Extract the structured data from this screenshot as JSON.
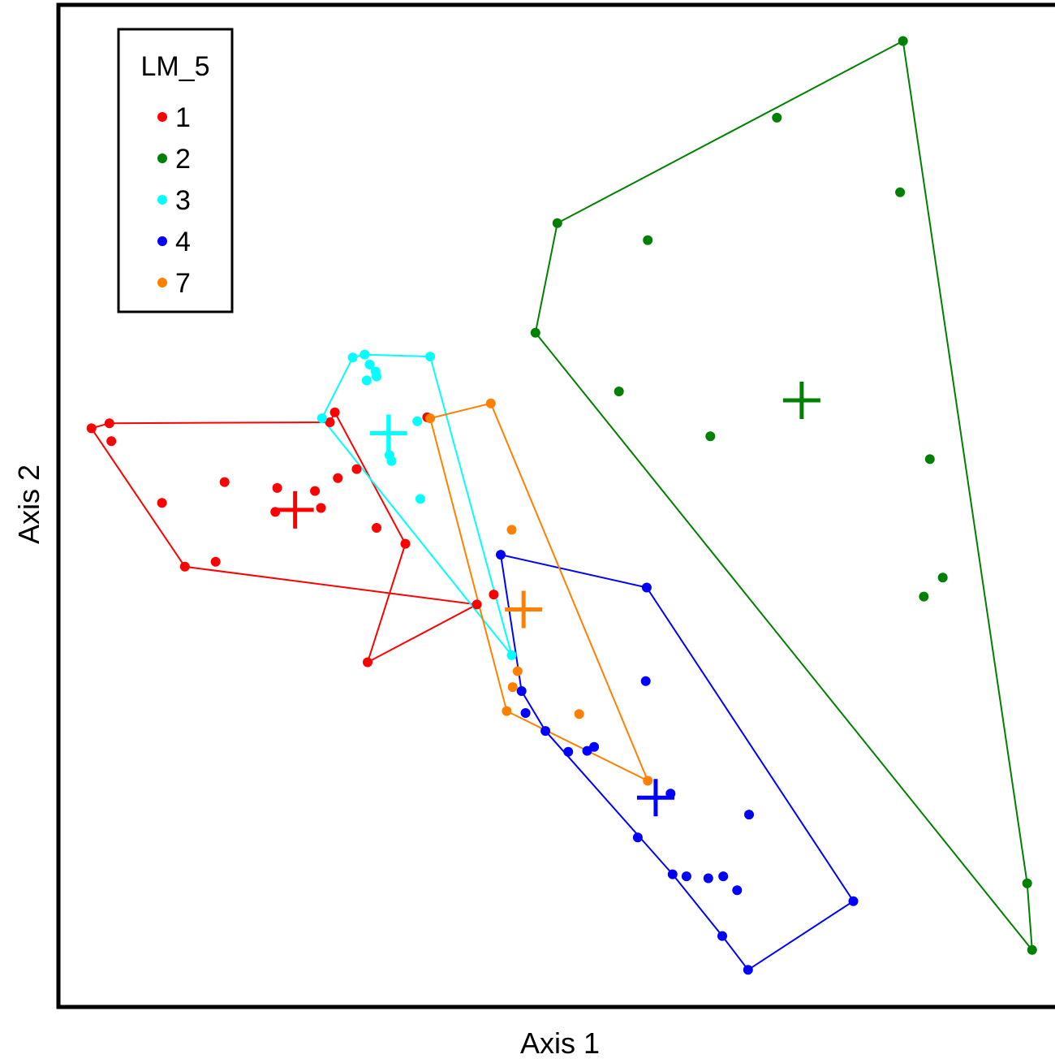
{
  "chart_data": {
    "type": "scatter",
    "title": "",
    "xlabel": "Axis 1",
    "ylabel": "Axis 2",
    "xlim": [
      0,
      100
    ],
    "ylim": [
      0,
      100
    ],
    "grid": false,
    "legend": {
      "title": "LM_5",
      "placement": "top-left",
      "entries": [
        "1",
        "2",
        "3",
        "4",
        "7"
      ]
    },
    "series": [
      {
        "name": "1",
        "color": "#ff0000",
        "points": [
          [
            3.0,
            57.8
          ],
          [
            4.8,
            58.3
          ],
          [
            5.0,
            56.5
          ],
          [
            10.1,
            50.3
          ],
          [
            12.4,
            43.9
          ],
          [
            15.5,
            44.4
          ],
          [
            16.4,
            52.4
          ],
          [
            21.7,
            51.8
          ],
          [
            21.5,
            49.4
          ],
          [
            25.5,
            51.5
          ],
          [
            26.1,
            49.8
          ],
          [
            27.8,
            52.8
          ],
          [
            29.7,
            53.7
          ],
          [
            27.0,
            58.4
          ],
          [
            27.5,
            59.4
          ],
          [
            31.7,
            47.8
          ],
          [
            34.6,
            46.2
          ],
          [
            36.8,
            58.9
          ],
          [
            41.8,
            40.1
          ],
          [
            43.5,
            41.1
          ],
          [
            30.8,
            34.3
          ]
        ],
        "hull_order": [
          0,
          1,
          13,
          14,
          16,
          20,
          18,
          4,
          0
        ],
        "centroid": [
          23.5,
          49.6
        ]
      },
      {
        "name": "2",
        "color": "#008000",
        "points": [
          [
            84.7,
            96.7
          ],
          [
            72.0,
            89.0
          ],
          [
            84.4,
            81.5
          ],
          [
            49.9,
            78.4
          ],
          [
            59.0,
            76.7
          ],
          [
            47.7,
            67.4
          ],
          [
            56.1,
            61.5
          ],
          [
            65.3,
            57.0
          ],
          [
            87.4,
            54.7
          ],
          [
            88.7,
            42.8
          ],
          [
            86.8,
            40.9
          ],
          [
            97.2,
            12.1
          ],
          [
            97.7,
            5.4
          ]
        ],
        "hull_order": [
          0,
          11,
          12,
          5,
          3,
          0
        ],
        "centroid": [
          74.5,
          60.6
        ]
      },
      {
        "name": "3",
        "color": "#00ffff",
        "points": [
          [
            37.1,
            65.0
          ],
          [
            29.3,
            64.9
          ],
          [
            30.5,
            65.2
          ],
          [
            31.0,
            64.2
          ],
          [
            31.6,
            63.5
          ],
          [
            31.7,
            63.0
          ],
          [
            30.7,
            62.6
          ],
          [
            26.2,
            58.8
          ],
          [
            35.8,
            58.5
          ],
          [
            33.0,
            55.1
          ],
          [
            33.2,
            54.5
          ],
          [
            36.1,
            50.7
          ],
          [
            45.3,
            35.0
          ]
        ],
        "hull_order": [
          0,
          12,
          7,
          1,
          2,
          0
        ],
        "centroid": [
          32.9,
          57.3
        ]
      },
      {
        "name": "4",
        "color": "#0000ff",
        "points": [
          [
            44.2,
            45.1
          ],
          [
            58.9,
            41.8
          ],
          [
            58.8,
            32.4
          ],
          [
            46.3,
            31.4
          ],
          [
            46.7,
            29.2
          ],
          [
            48.7,
            27.4
          ],
          [
            51.0,
            25.3
          ],
          [
            52.9,
            25.4
          ],
          [
            53.6,
            25.8
          ],
          [
            61.3,
            21.1
          ],
          [
            69.2,
            19.0
          ],
          [
            58.0,
            16.7
          ],
          [
            61.5,
            13.0
          ],
          [
            62.9,
            12.8
          ],
          [
            65.1,
            12.6
          ],
          [
            66.6,
            12.8
          ],
          [
            68.0,
            11.4
          ],
          [
            79.7,
            10.3
          ],
          [
            66.5,
            6.8
          ],
          [
            69.1,
            3.4
          ]
        ],
        "hull_order": [
          0,
          1,
          17,
          19,
          18,
          12,
          5,
          3,
          0
        ],
        "centroid": [
          59.8,
          20.7
        ]
      },
      {
        "name": "7",
        "color": "#ff8000",
        "points": [
          [
            43.2,
            60.3
          ],
          [
            37.1,
            58.8
          ],
          [
            45.3,
            47.6
          ],
          [
            45.9,
            33.4
          ],
          [
            45.4,
            31.8
          ],
          [
            44.8,
            29.4
          ],
          [
            52.1,
            29.1
          ],
          [
            59.0,
            22.4
          ]
        ],
        "hull_order": [
          0,
          7,
          5,
          1,
          0
        ],
        "centroid": [
          46.5,
          39.6
        ]
      }
    ]
  }
}
